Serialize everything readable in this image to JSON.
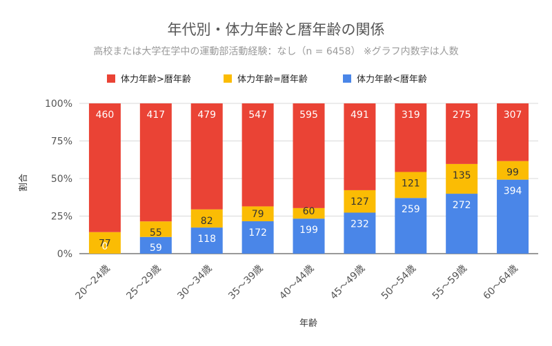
{
  "chart_data": {
    "type": "bar",
    "stacked": "percent",
    "title": "年代別・体力年齢と暦年齢の関係",
    "subtitle": "高校または大学在学中の運動部活動経験：なし（n = 6458） ※グラフ内数字は人数",
    "xlabel": "年齢",
    "ylabel": "割合",
    "ylim": [
      0,
      100
    ],
    "y_ticks": [
      "0%",
      "25%",
      "50%",
      "75%",
      "100%"
    ],
    "legend_position": "top",
    "grid": true,
    "categories": [
      "20～24歳",
      "25～29歳",
      "30～34歳",
      "35～39歳",
      "40～44歳",
      "45～49歳",
      "50～54歳",
      "55～59歳",
      "60～64歳"
    ],
    "series": [
      {
        "name": "体力年齢<暦年齢",
        "color": "#4a86e8",
        "values": [
          0,
          59,
          118,
          172,
          199,
          232,
          259,
          272,
          394
        ]
      },
      {
        "name": "体力年齢=暦年齢",
        "color": "#fbbc04",
        "values": [
          77,
          55,
          82,
          79,
          60,
          127,
          121,
          135,
          99
        ]
      },
      {
        "name": "体力年齢>暦年齢",
        "color": "#ea4335",
        "values": [
          460,
          417,
          479,
          547,
          595,
          491,
          319,
          275,
          307
        ]
      }
    ],
    "legend_order": [
      2,
      1,
      0
    ]
  }
}
